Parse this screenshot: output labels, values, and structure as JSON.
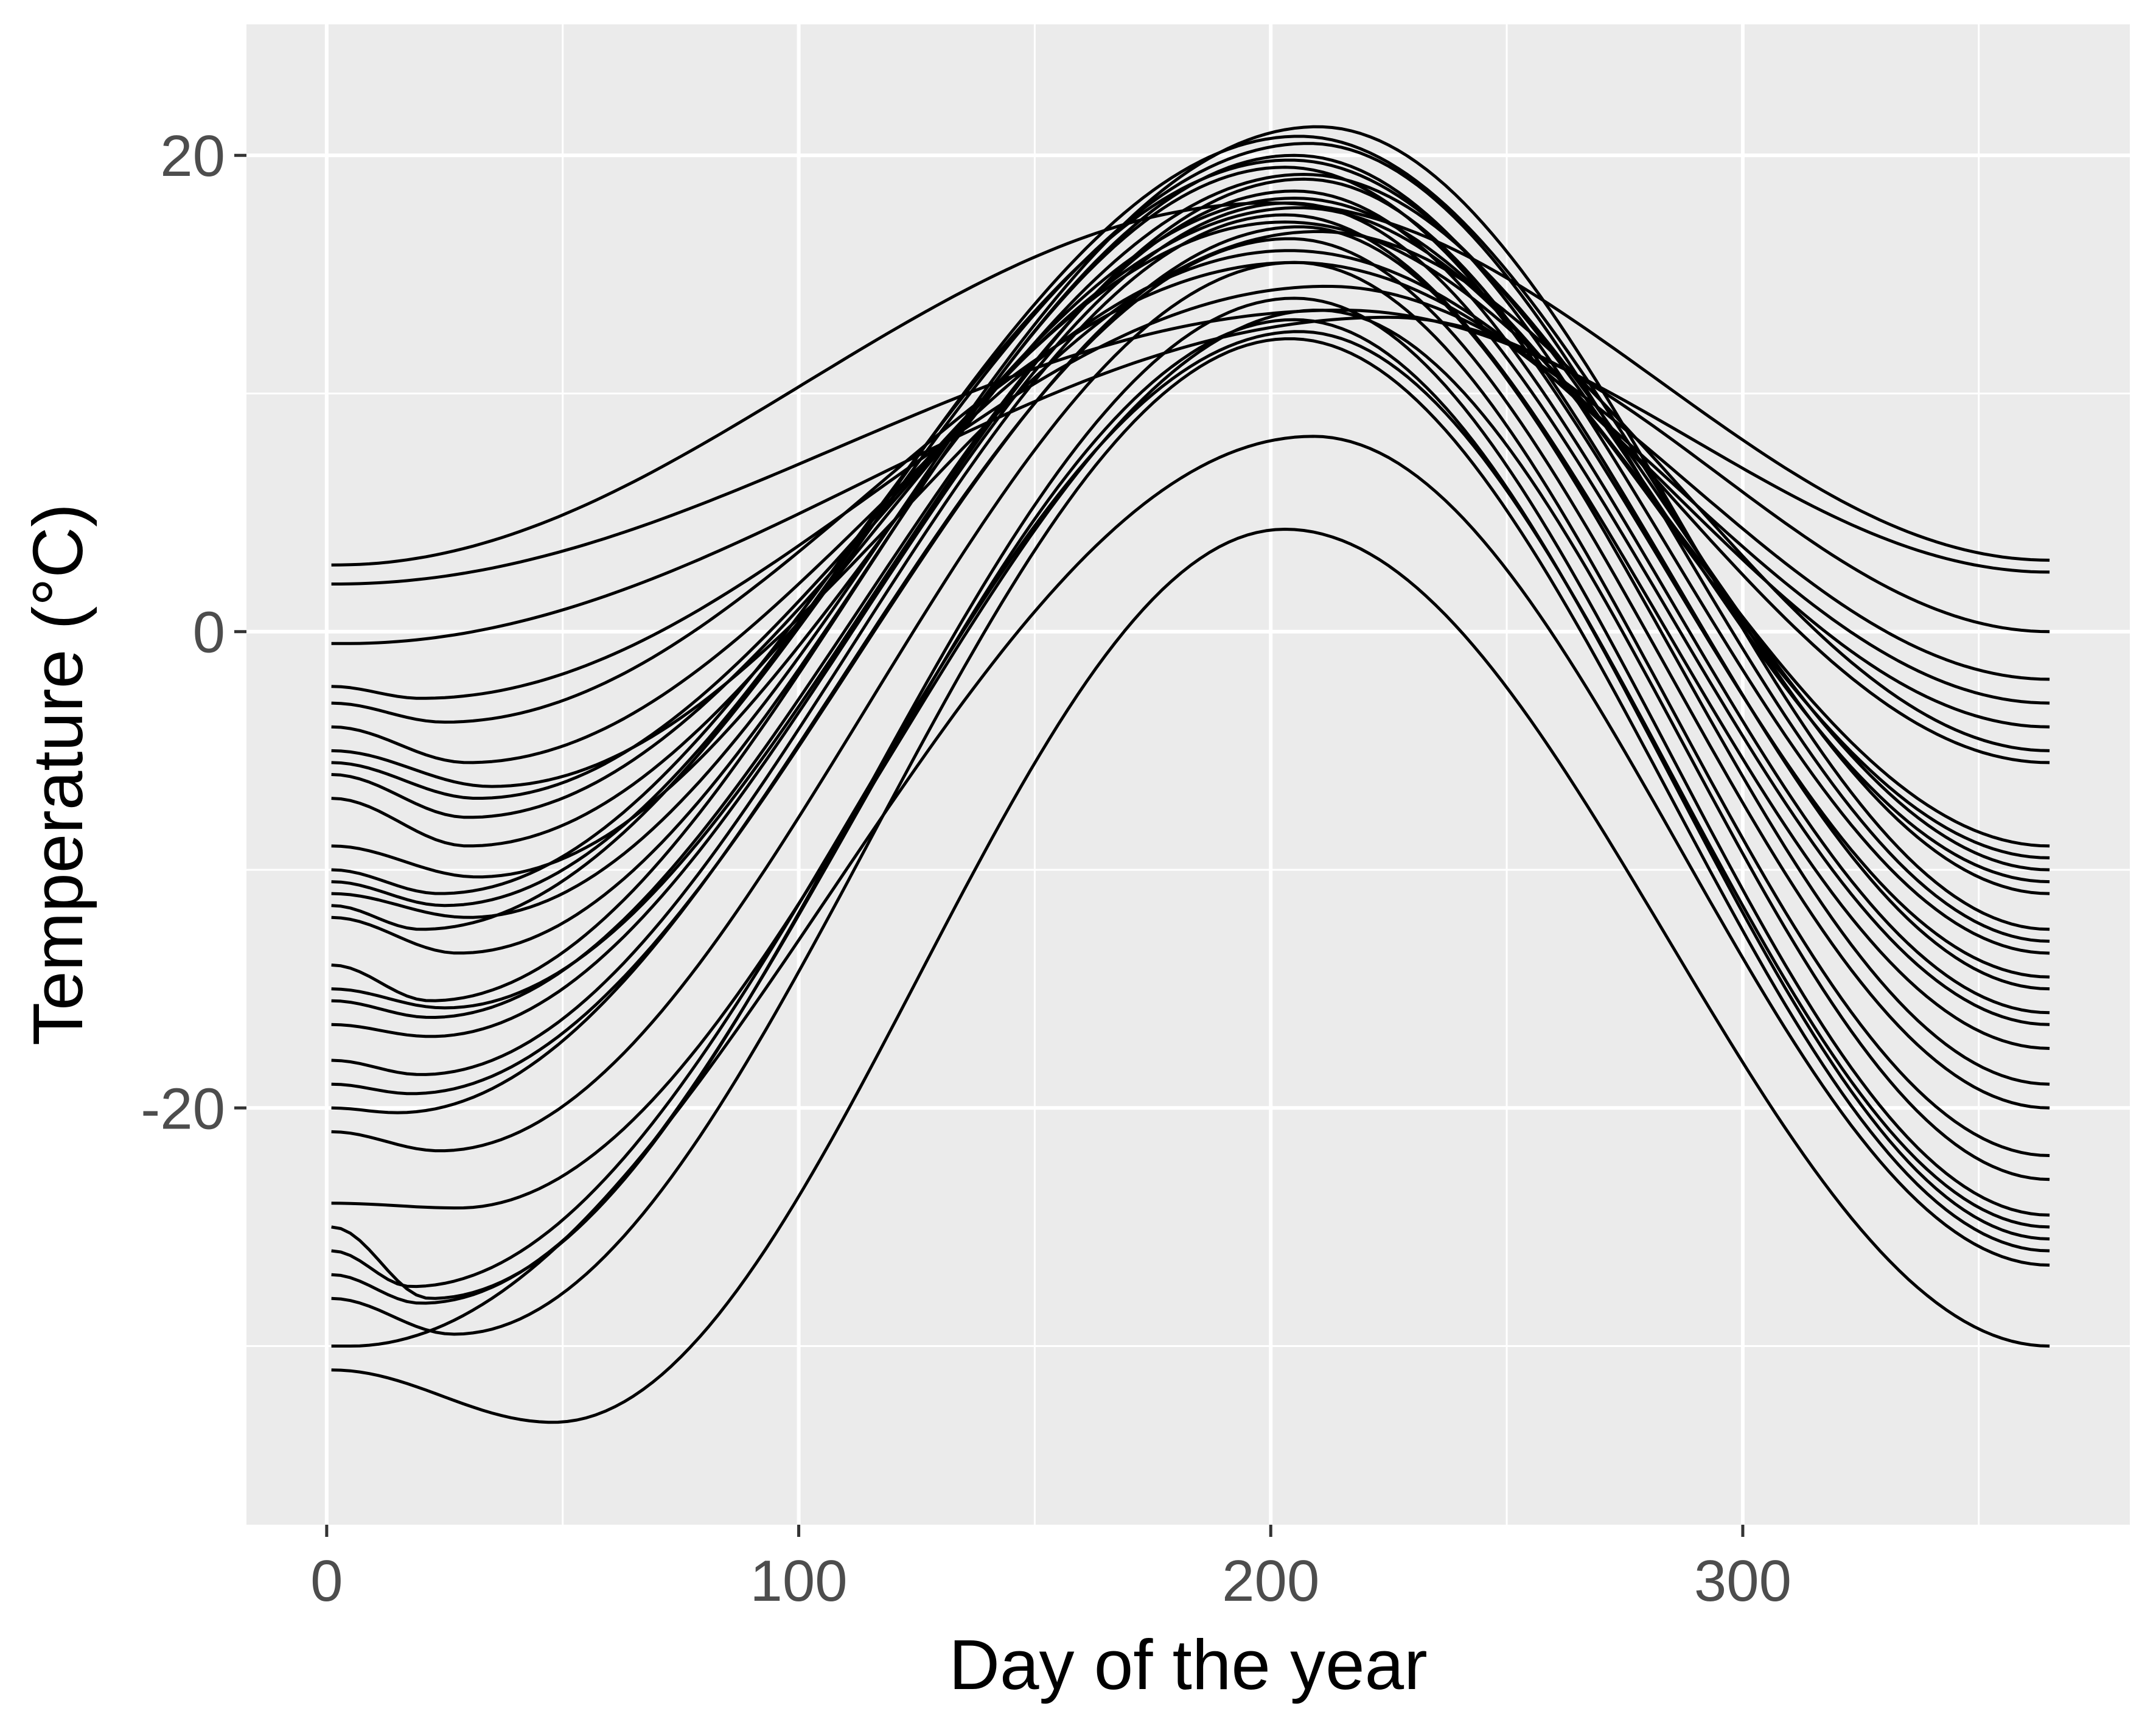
{
  "chart_data": {
    "type": "line",
    "title": "",
    "xlabel": "Day of the year",
    "ylabel": "Temperature (°C)",
    "xlim": [
      -17,
      382
    ],
    "ylim": [
      -37.5,
      25.5
    ],
    "xticks": [
      0,
      100,
      200,
      300
    ],
    "yticks": [
      -20,
      0,
      20
    ],
    "xminor": [
      50,
      150,
      250,
      350
    ],
    "yminor": [
      -30,
      -10,
      10
    ],
    "grid": true,
    "legend": "none",
    "colors": {
      "panel": "#ebebeb",
      "grid": "#ffffff",
      "line": "#000000",
      "tick_text": "#4d4d4d",
      "tick_mark": "#333333"
    },
    "series_note": "approximate seasonal curves; each series = [jan1, winter_min_day, winter_min, summer_peak_day, summer_peak, dec31]",
    "series": [
      {
        "params": [
          -31.0,
          48,
          -33.2,
          203,
          4.3,
          -30.0
        ]
      },
      {
        "params": [
          -30.0,
          5,
          -30.0,
          209,
          8.2,
          -26.6
        ]
      },
      {
        "params": [
          -28.0,
          27,
          -29.5,
          204,
          12.3,
          -26.0
        ]
      },
      {
        "params": [
          -27.0,
          20,
          -28.2,
          205,
          13.1,
          -25.5
        ]
      },
      {
        "params": [
          -26.0,
          18,
          -27.5,
          206,
          12.6,
          -25.0
        ]
      },
      {
        "params": [
          -25.0,
          22,
          -28.0,
          205,
          14.0,
          -24.5
        ]
      },
      {
        "params": [
          -24.0,
          28,
          -24.2,
          210,
          13.5,
          -23.0
        ]
      },
      {
        "params": [
          -21.0,
          24,
          -21.8,
          205,
          15.5,
          -22.0
        ]
      },
      {
        "params": [
          -20.0,
          15,
          -20.2,
          204,
          16.5,
          -20.0
        ]
      },
      {
        "params": [
          -19.0,
          18,
          -19.4,
          206,
          17.0,
          -19.0
        ]
      },
      {
        "params": [
          -18.0,
          20,
          -18.6,
          203,
          17.5,
          -17.5
        ]
      },
      {
        "params": [
          -16.5,
          22,
          -17.0,
          204,
          18.0,
          -16.5
        ]
      },
      {
        "params": [
          -15.5,
          22,
          -16.2,
          205,
          18.5,
          -16.0
        ]
      },
      {
        "params": [
          -15.0,
          25,
          -15.8,
          207,
          19.0,
          -15.0
        ]
      },
      {
        "params": [
          -14.0,
          22,
          -15.5,
          203,
          19.5,
          -14.5
        ]
      },
      {
        "params": [
          -12.0,
          28,
          -13.5,
          205,
          20.0,
          -13.5
        ]
      },
      {
        "params": [
          -11.5,
          20,
          -12.5,
          208,
          20.5,
          -13.0
        ]
      },
      {
        "params": [
          -11.0,
          30,
          -12.0,
          210,
          21.2,
          -12.5
        ]
      },
      {
        "params": [
          -10.5,
          25,
          -11.5,
          206,
          20.8,
          -11.0
        ]
      },
      {
        "params": [
          -10.0,
          24,
          -11.0,
          204,
          19.8,
          -10.5
        ]
      },
      {
        "params": [
          -9.0,
          32,
          -10.3,
          207,
          19.2,
          -10.0
        ]
      },
      {
        "params": [
          -7.0,
          30,
          -9.0,
          205,
          18.2,
          -9.5
        ]
      },
      {
        "params": [
          -6.0,
          30,
          -7.8,
          206,
          17.8,
          -9.0
        ]
      },
      {
        "params": [
          -5.5,
          32,
          -7.0,
          203,
          17.2,
          -5.5
        ]
      },
      {
        "params": [
          -5.0,
          35,
          -6.5,
          210,
          16.8,
          -5.0
        ]
      },
      {
        "params": [
          -4.0,
          30,
          -5.5,
          204,
          16.0,
          -4.0
        ]
      },
      {
        "params": [
          -3.0,
          25,
          -3.8,
          205,
          15.5,
          -3.0
        ]
      },
      {
        "params": [
          -2.3,
          20,
          -2.8,
          212,
          14.5,
          -2.0
        ]
      },
      {
        "params": [
          -0.5,
          4,
          -0.5,
          225,
          13.2,
          0.0
        ]
      },
      {
        "params": [
          2.0,
          2,
          2.0,
          215,
          13.5,
          2.5
        ]
      },
      {
        "params": [
          2.8,
          2,
          2.8,
          200,
          18.0,
          3.0
        ]
      }
    ]
  }
}
